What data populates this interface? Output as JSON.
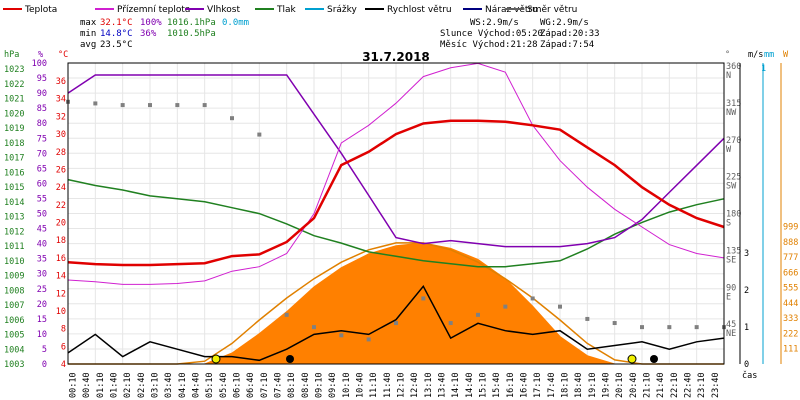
{
  "chart_data": {
    "type": "line",
    "title": "31.7.2018",
    "legend": [
      {
        "name": "Teplota",
        "color": "#e00000"
      },
      {
        "name": "Přízemní teplota",
        "color": "#d020d0"
      },
      {
        "name": "Vlhkost",
        "color": "#8000b0"
      },
      {
        "name": "Tlak",
        "color": "#208020"
      },
      {
        "name": "Srážky",
        "color": "#00a0d0"
      },
      {
        "name": "Rychlost větru",
        "color": "#000000"
      },
      {
        "name": "Náraz větru",
        "color": "#000080"
      },
      {
        "name": "Směr větru",
        "color": "#606060"
      }
    ],
    "stats": {
      "max_label": "max",
      "max_temp": "32.1°C",
      "max_hum": "100%",
      "max_press": "1016.1hPa",
      "rain": "0.0mm",
      "min_label": "min",
      "min_temp": "14.8°C",
      "min_hum": "36%",
      "min_press": "1010.5hPa",
      "avg_label": "avg",
      "avg_temp": "23.5°C"
    },
    "wind_info": {
      "ws": "WS:2.9m/s",
      "wg": "WG:2.9m/s"
    },
    "sun_info": {
      "sunrise": "Slunce Východ:05:20",
      "sunset": "Západ:20:33"
    },
    "moon_info": {
      "moonrise": "Měsíc  Východ:21:28",
      "moonset": "Západ:7:54"
    },
    "axes": {
      "hpa_title": "hPa",
      "pct_title": "%",
      "temp_title": "°C",
      "dir_title": "°",
      "ms_title": "m/s",
      "mm_title": "mm",
      "w_title": "W",
      "x_title": "čas",
      "hpa_ticks": [
        1003,
        1004,
        1005,
        1006,
        1007,
        1008,
        1009,
        1010,
        1011,
        1012,
        1013,
        1014,
        1015,
        1016,
        1017,
        1018,
        1019,
        1020,
        1021,
        1022,
        1023
      ],
      "pct_ticks": [
        0,
        5,
        10,
        15,
        20,
        25,
        30,
        35,
        40,
        45,
        50,
        55,
        60,
        65,
        70,
        75,
        80,
        85,
        90,
        95,
        100
      ],
      "temp_ticks": [
        4,
        6,
        8,
        10,
        12,
        14,
        16,
        18,
        20,
        22,
        24,
        26,
        28,
        30,
        32,
        34,
        36
      ],
      "dir_ticks": [
        {
          "value": 360,
          "label": "360",
          "dir": "N"
        },
        {
          "value": 315,
          "label": "315",
          "dir": "NW"
        },
        {
          "value": 270,
          "label": "270",
          "dir": "W"
        },
        {
          "value": 225,
          "label": "225",
          "dir": "SW"
        },
        {
          "value": 180,
          "label": "180",
          "dir": "S"
        },
        {
          "value": 135,
          "label": "135",
          "dir": "SE"
        },
        {
          "value": 90,
          "label": "90",
          "dir": "E"
        },
        {
          "value": 45,
          "label": "45",
          "dir": "NE"
        }
      ],
      "ms_ticks": [
        0,
        1,
        2,
        3
      ],
      "mm_ticks": [
        1
      ],
      "w_ticks": [
        111,
        222,
        333,
        444,
        555,
        666,
        777,
        888,
        999
      ],
      "x_ticks": [
        "00:10",
        "00:40",
        "01:10",
        "01:40",
        "02:10",
        "02:40",
        "03:10",
        "03:40",
        "04:10",
        "04:40",
        "05:10",
        "05:40",
        "06:10",
        "06:40",
        "07:10",
        "07:40",
        "08:10",
        "08:40",
        "09:10",
        "09:40",
        "10:10",
        "10:40",
        "11:10",
        "11:40",
        "12:10",
        "12:40",
        "13:10",
        "13:40",
        "14:10",
        "14:40",
        "15:10",
        "15:40",
        "16:10",
        "16:40",
        "17:10",
        "17:40",
        "18:10",
        "18:40",
        "19:10",
        "19:40",
        "20:10",
        "20:40",
        "21:10",
        "21:40",
        "22:10",
        "22:40",
        "23:10",
        "23:40"
      ]
    },
    "hours": [
      0,
      1,
      2,
      3,
      4,
      5,
      6,
      7,
      8,
      9,
      10,
      11,
      12,
      13,
      14,
      15,
      16,
      17,
      18,
      19,
      20,
      21,
      22,
      23,
      24
    ],
    "temperature": [
      15.5,
      15.3,
      15.2,
      15.2,
      15.3,
      15.4,
      16.2,
      16.4,
      17.8,
      20.5,
      26.5,
      28.0,
      30.0,
      31.2,
      31.5,
      31.5,
      31.4,
      31.0,
      30.5,
      28.5,
      26.5,
      24.0,
      22.0,
      20.5,
      19.5
    ],
    "ground_temp": [
      13.5,
      13.3,
      13.0,
      13.0,
      13.1,
      13.4,
      14.5,
      15.0,
      16.5,
      21.0,
      29.0,
      31.0,
      33.5,
      36.5,
      37.5,
      38.0,
      37.0,
      31.0,
      27.0,
      24.0,
      21.5,
      19.5,
      17.5,
      16.5,
      16.0
    ],
    "humidity": [
      90,
      96,
      96,
      96,
      96,
      96,
      96,
      96,
      96,
      83,
      70,
      56,
      42,
      40,
      41,
      40,
      39,
      39,
      39,
      40,
      42,
      48,
      57,
      66,
      75
    ],
    "pressure": [
      1015.5,
      1015.1,
      1014.8,
      1014.4,
      1014.2,
      1014.0,
      1013.6,
      1013.2,
      1012.5,
      1011.7,
      1011.2,
      1010.6,
      1010.3,
      1010.0,
      1009.8,
      1009.6,
      1009.6,
      1009.8,
      1010.0,
      1010.8,
      1011.8,
      1012.6,
      1013.3,
      1013.8,
      1014.2
    ],
    "wind_speed": [
      0.3,
      0.8,
      0.2,
      0.6,
      0.4,
      0.2,
      0.2,
      0.1,
      0.4,
      0.8,
      0.9,
      0.8,
      1.2,
      2.1,
      0.7,
      1.1,
      0.9,
      0.8,
      0.9,
      0.4,
      0.5,
      0.6,
      0.4,
      0.6,
      0.7
    ],
    "wind_dir": [
      320,
      318,
      316,
      316,
      316,
      316,
      300,
      280,
      60,
      45,
      35,
      30,
      50,
      80,
      50,
      60,
      70,
      80,
      70,
      55,
      50,
      45,
      45,
      45,
      45
    ],
    "solar_radiation": [
      0,
      0,
      0,
      0,
      0,
      0,
      80,
      220,
      380,
      560,
      700,
      800,
      860,
      880,
      840,
      760,
      620,
      420,
      200,
      60,
      0,
      0,
      0,
      0,
      0
    ],
    "solar_theoretical": [
      0,
      0,
      0,
      0,
      0,
      20,
      150,
      320,
      480,
      620,
      740,
      830,
      880,
      880,
      830,
      740,
      620,
      480,
      320,
      150,
      30,
      0,
      0,
      0,
      0
    ]
  }
}
